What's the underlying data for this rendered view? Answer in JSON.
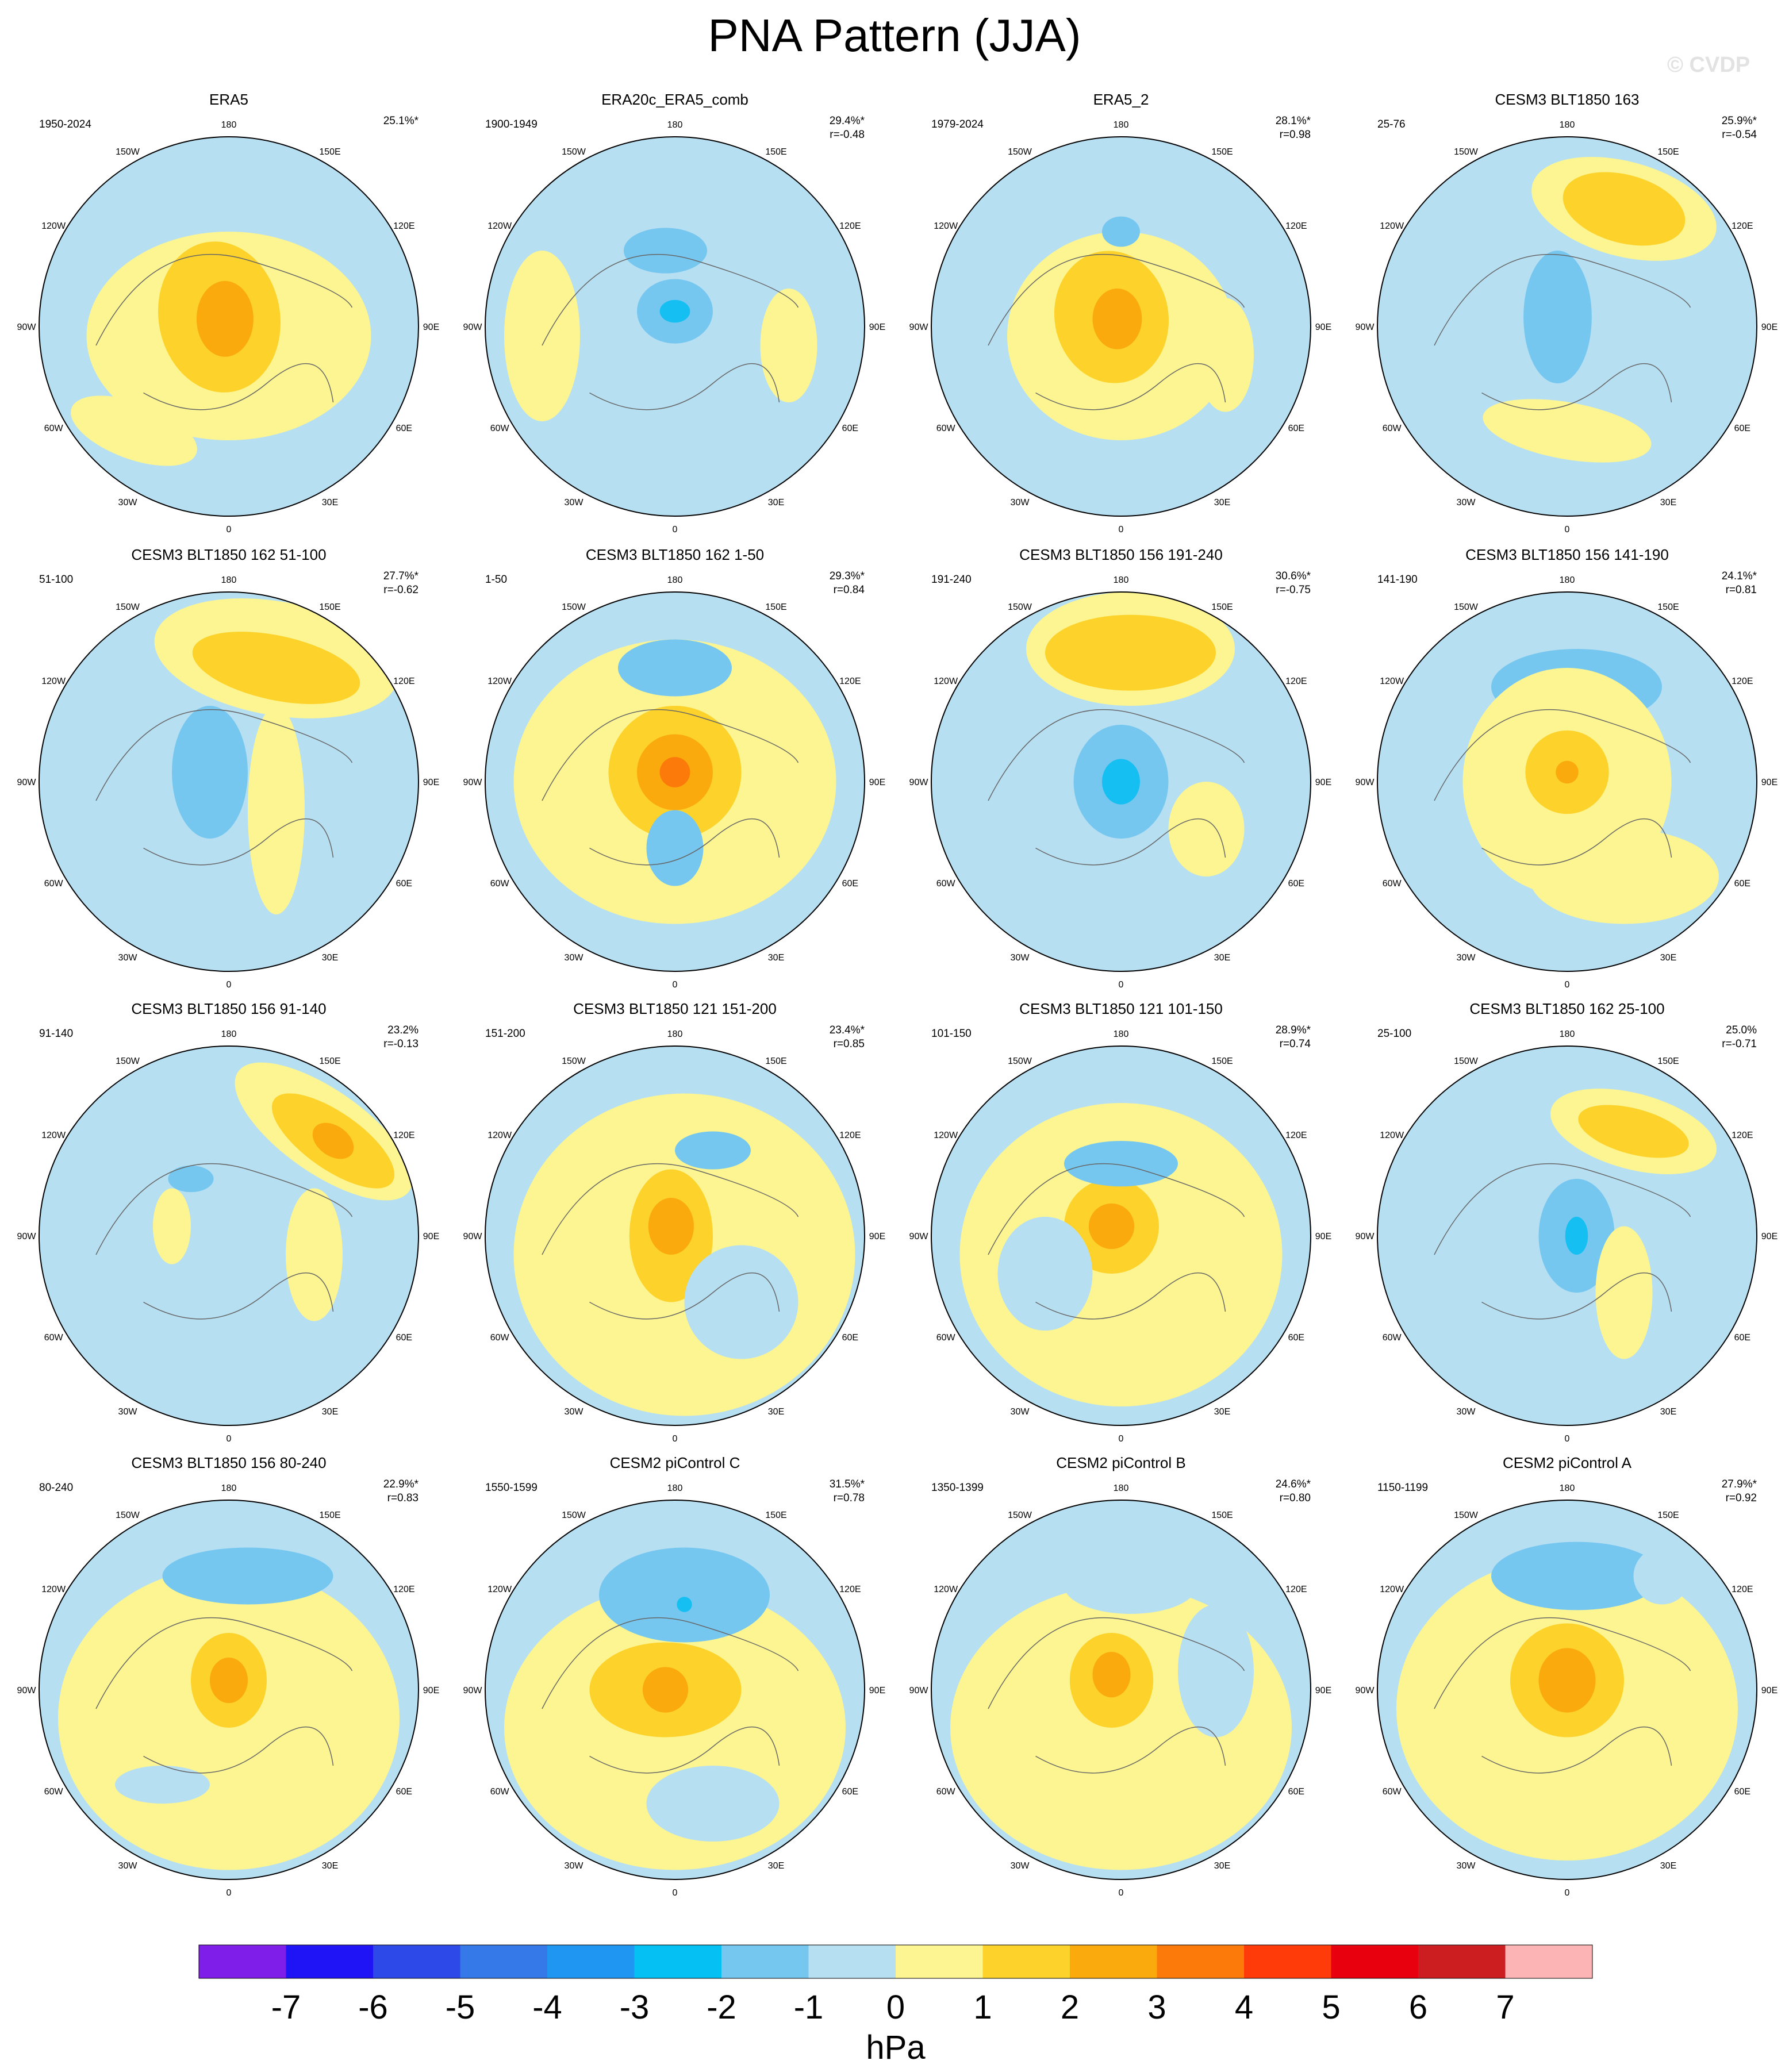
{
  "title": "PNA Pattern (JJA)",
  "watermark": "© CVDP",
  "colors": {
    "ocean_neg": "#b7dff2",
    "pos1": "#fcf591",
    "pos2": "#fdd22b",
    "pos3": "#fbaa0e",
    "pos4": "#fb7a0a",
    "neg2": "#76c7f0",
    "neg3": "#16bff2",
    "coast": "#666666"
  },
  "longitude_labels": [
    "180",
    "150E",
    "120E",
    "90E",
    "60E",
    "30E",
    "0",
    "30W",
    "60W",
    "90W",
    "120W",
    "150W"
  ],
  "panels": [
    {
      "title": "ERA5",
      "period": "1950-2024",
      "pct": "25.1%*",
      "r": ""
    },
    {
      "title": "ERA20c_ERA5_comb",
      "period": "1900-1949",
      "pct": "29.4%*",
      "r": "r=-0.48"
    },
    {
      "title": "ERA5_2",
      "period": "1979-2024",
      "pct": "28.1%*",
      "r": "r=0.98"
    },
    {
      "title": "CESM3 BLT1850 163",
      "period": "25-76",
      "pct": "25.9%*",
      "r": "r=-0.54"
    },
    {
      "title": "CESM3 BLT1850 162 51-100",
      "period": "51-100",
      "pct": "27.7%*",
      "r": "r=-0.62"
    },
    {
      "title": "CESM3 BLT1850 162 1-50",
      "period": "1-50",
      "pct": "29.3%*",
      "r": "r=0.84"
    },
    {
      "title": "CESM3 BLT1850 156 191-240",
      "period": "191-240",
      "pct": "30.6%*",
      "r": "r=-0.75"
    },
    {
      "title": "CESM3 BLT1850 156 141-190",
      "period": "141-190",
      "pct": "24.1%*",
      "r": "r=0.81"
    },
    {
      "title": "CESM3 BLT1850 156 91-140",
      "period": "91-140",
      "pct": "23.2%",
      "r": "r=-0.13"
    },
    {
      "title": "CESM3 BLT1850 121 151-200",
      "period": "151-200",
      "pct": "23.4%*",
      "r": "r=0.85"
    },
    {
      "title": "CESM3 BLT1850 121 101-150",
      "period": "101-150",
      "pct": "28.9%*",
      "r": "r=0.74"
    },
    {
      "title": "CESM3 BLT1850 162 25-100",
      "period": "25-100",
      "pct": "25.0%",
      "r": "r=-0.71"
    },
    {
      "title": "CESM3 BLT1850 156 80-240",
      "period": "80-240",
      "pct": "22.9%*",
      "r": "r=0.83"
    },
    {
      "title": "CESM2 piControl C",
      "period": "1550-1599",
      "pct": "31.5%*",
      "r": "r=0.78"
    },
    {
      "title": "CESM2 piControl B",
      "period": "1350-1399",
      "pct": "24.6%*",
      "r": "r=0.80"
    },
    {
      "title": "CESM2 piControl A",
      "period": "1150-1199",
      "pct": "27.9%*",
      "r": "r=0.92"
    }
  ],
  "chart_data": {
    "type": "heatmap",
    "projection": "polar stereographic, Northern Hemisphere",
    "layout": "4x4 grid of panels",
    "colorbar": {
      "unit": "hPa",
      "ticks": [
        "-7",
        "-6",
        "-5",
        "-4",
        "-3",
        "-2",
        "-1",
        "0",
        "1",
        "2",
        "3",
        "4",
        "5",
        "6",
        "7"
      ],
      "bin_colors": [
        "#7e1ee8",
        "#1f14f5",
        "#2d49e8",
        "#3578e8",
        "#1f96f2",
        "#05c0f2",
        "#76c7f0",
        "#b7dff2",
        "#fcf591",
        "#fdd22b",
        "#fbaa0e",
        "#fb7a0a",
        "#ff3b0a",
        "#e8000e",
        "#cc1d20",
        "#fdb4b4"
      ]
    }
  }
}
